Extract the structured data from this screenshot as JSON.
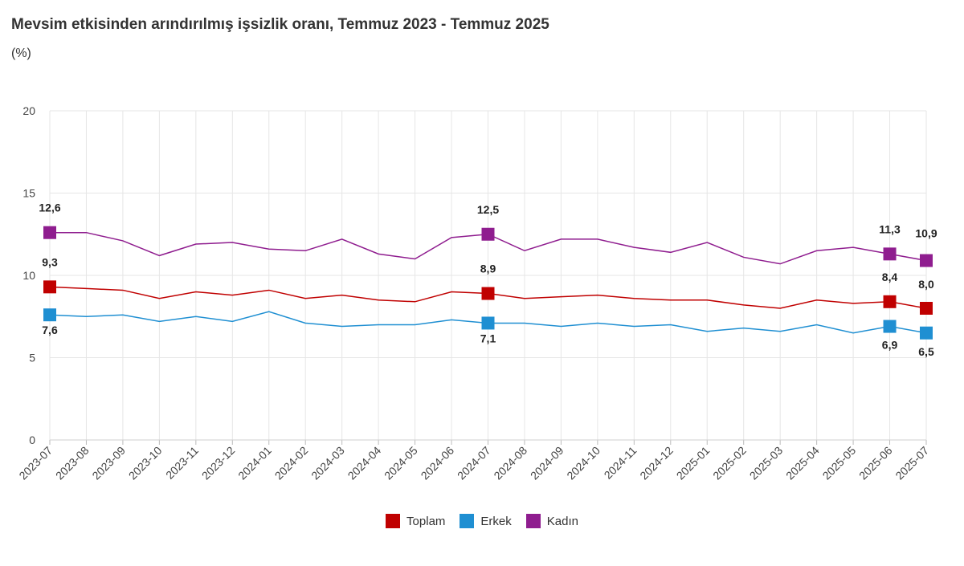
{
  "chart_data": {
    "type": "line",
    "title": "Mevsim etkisinden arındırılmış işsizlik oranı, Temmuz 2023 - Temmuz 2025",
    "subtitle": "(%)",
    "categories": [
      "2023-07",
      "2023-08",
      "2023-09",
      "2023-10",
      "2023-11",
      "2023-12",
      "2024-01",
      "2024-02",
      "2024-03",
      "2024-04",
      "2024-05",
      "2024-06",
      "2024-07",
      "2024-08",
      "2024-09",
      "2024-10",
      "2024-11",
      "2024-12",
      "2025-01",
      "2025-02",
      "2025-03",
      "2025-04",
      "2025-05",
      "2025-06",
      "2025-07"
    ],
    "ylim": [
      0,
      20
    ],
    "yticks": [
      0,
      5,
      10,
      15,
      20
    ],
    "grid": true,
    "legend_position": "bottom",
    "series": [
      {
        "name": "Toplam",
        "color": "#c00000",
        "values": [
          9.3,
          9.2,
          9.1,
          8.6,
          9.0,
          8.8,
          9.1,
          8.6,
          8.8,
          8.5,
          8.4,
          9.0,
          8.9,
          8.6,
          8.7,
          8.8,
          8.6,
          8.5,
          8.5,
          8.2,
          8.0,
          8.5,
          8.3,
          8.4,
          8.0
        ],
        "labels": {
          "0": "9,3",
          "12": "8,9",
          "23": "8,4",
          "24": "8,0"
        }
      },
      {
        "name": "Erkek",
        "color": "#1f8fd2",
        "values": [
          7.6,
          7.5,
          7.6,
          7.2,
          7.5,
          7.2,
          7.8,
          7.1,
          6.9,
          7.0,
          7.0,
          7.3,
          7.1,
          7.1,
          6.9,
          7.1,
          6.9,
          7.0,
          6.6,
          6.8,
          6.6,
          7.0,
          6.5,
          6.9,
          6.5
        ],
        "labels": {
          "0": "7,6",
          "12": "7,1",
          "23": "6,9",
          "24": "6,5"
        }
      },
      {
        "name": "Kadın",
        "color": "#8f1d8f",
        "values": [
          12.6,
          12.6,
          12.1,
          11.2,
          11.9,
          12.0,
          11.6,
          11.5,
          12.2,
          11.3,
          11.0,
          12.3,
          12.5,
          11.5,
          12.2,
          12.2,
          11.7,
          11.4,
          12.0,
          11.1,
          10.7,
          11.5,
          11.7,
          11.3,
          10.9
        ],
        "labels": {
          "0": "12,6",
          "12": "12,5",
          "23": "11,3",
          "24": "10,9"
        }
      }
    ]
  }
}
